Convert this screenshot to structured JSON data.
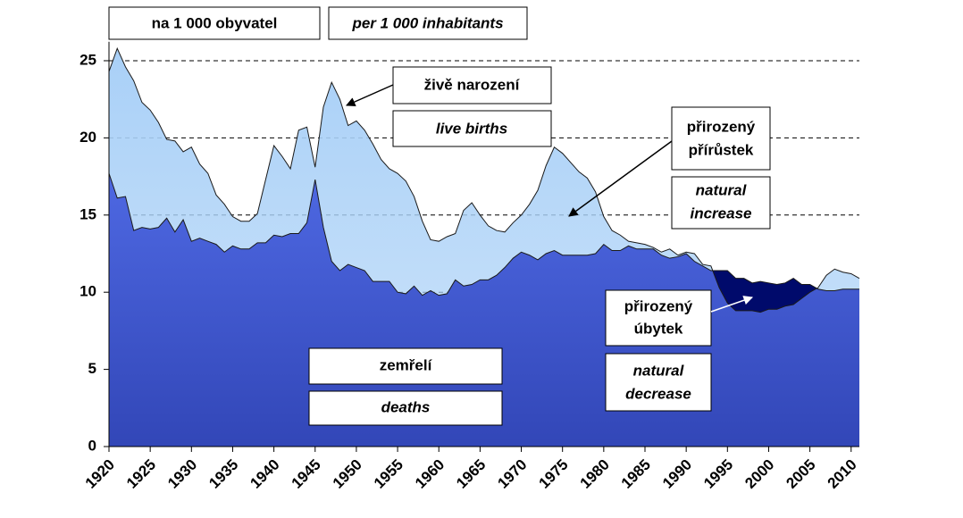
{
  "header": {
    "unit_cz": "na 1 000 obyvatel",
    "unit_en": "per 1 000 inhabitants"
  },
  "chart_data": {
    "type": "area",
    "x": [
      1920,
      1921,
      1922,
      1923,
      1924,
      1925,
      1926,
      1927,
      1928,
      1929,
      1930,
      1931,
      1932,
      1933,
      1934,
      1935,
      1936,
      1937,
      1938,
      1939,
      1940,
      1941,
      1942,
      1943,
      1944,
      1945,
      1946,
      1947,
      1948,
      1949,
      1950,
      1951,
      1952,
      1953,
      1954,
      1955,
      1956,
      1957,
      1958,
      1959,
      1960,
      1961,
      1962,
      1963,
      1964,
      1965,
      1966,
      1967,
      1968,
      1969,
      1970,
      1971,
      1972,
      1973,
      1974,
      1975,
      1976,
      1977,
      1978,
      1979,
      1980,
      1981,
      1982,
      1983,
      1984,
      1985,
      1986,
      1987,
      1988,
      1989,
      1990,
      1991,
      1992,
      1993,
      1994,
      1995,
      1996,
      1997,
      1998,
      1999,
      2000,
      2001,
      2002,
      2003,
      2004,
      2005,
      2006,
      2007,
      2008,
      2009,
      2010,
      2011
    ],
    "series": [
      {
        "name": "živě narození",
        "color": "#a9d0f7",
        "values": [
          24.3,
          25.8,
          24.6,
          23.7,
          22.3,
          21.8,
          21.0,
          19.9,
          19.8,
          19.1,
          19.4,
          18.3,
          17.7,
          16.3,
          15.7,
          14.9,
          14.6,
          14.6,
          15.1,
          17.3,
          19.5,
          18.8,
          18.0,
          20.5,
          20.7,
          18.1,
          22.0,
          23.6,
          22.5,
          20.8,
          21.1,
          20.5,
          19.6,
          18.6,
          18.0,
          17.7,
          17.2,
          16.2,
          14.6,
          13.4,
          13.3,
          13.6,
          13.8,
          15.3,
          15.8,
          15.0,
          14.3,
          14.0,
          13.9,
          14.5,
          15.0,
          15.7,
          16.6,
          18.2,
          19.4,
          19.0,
          18.4,
          17.8,
          17.4,
          16.5,
          14.9,
          14.0,
          13.7,
          13.3,
          13.2,
          13.1,
          12.9,
          12.6,
          12.8,
          12.4,
          12.6,
          12.5,
          11.8,
          11.7,
          10.3,
          9.3,
          8.8,
          8.8,
          8.8,
          8.7,
          8.9,
          8.9,
          9.1,
          9.2,
          9.6,
          10.0,
          10.3,
          11.1,
          11.5,
          11.3,
          11.2,
          10.9
        ]
      },
      {
        "name": "zemřelí",
        "color": "#5b78f6",
        "values": [
          17.7,
          16.1,
          16.2,
          14.0,
          14.2,
          14.1,
          14.2,
          14.8,
          13.9,
          14.7,
          13.3,
          13.5,
          13.3,
          13.1,
          12.6,
          13.0,
          12.8,
          12.8,
          13.2,
          13.2,
          13.7,
          13.6,
          13.8,
          13.8,
          14.5,
          17.3,
          14.2,
          12.0,
          11.4,
          11.8,
          11.6,
          11.4,
          10.7,
          10.7,
          10.7,
          10.0,
          9.9,
          10.4,
          9.8,
          10.1,
          9.8,
          9.9,
          10.8,
          10.4,
          10.5,
          10.8,
          10.8,
          11.1,
          11.6,
          12.2,
          12.6,
          12.4,
          12.1,
          12.5,
          12.7,
          12.4,
          12.4,
          12.4,
          12.4,
          12.5,
          13.1,
          12.7,
          12.7,
          13.0,
          12.8,
          12.8,
          12.8,
          12.4,
          12.2,
          12.3,
          12.5,
          12.0,
          11.7,
          11.4,
          11.4,
          11.4,
          10.9,
          10.9,
          10.6,
          10.7,
          10.6,
          10.5,
          10.6,
          10.9,
          10.5,
          10.5,
          10.2,
          10.1,
          10.1,
          10.2,
          10.2,
          10.2
        ]
      }
    ],
    "decrease_color": "#000a6b",
    "xlim": [
      1920,
      2011
    ],
    "xticks": [
      1920,
      1925,
      1930,
      1935,
      1940,
      1945,
      1950,
      1955,
      1960,
      1965,
      1970,
      1975,
      1980,
      1985,
      1990,
      1995,
      2000,
      2005,
      2010
    ],
    "ylim": [
      0,
      26
    ],
    "yticks": [
      0,
      5,
      10,
      15,
      20,
      25
    ],
    "grid": true,
    "annotations": {
      "live_births_en": "live births",
      "deaths_en": "deaths",
      "increase_cz": [
        "přirozený",
        "přírůstek"
      ],
      "increase_en": [
        "natural",
        "increase"
      ],
      "decrease_cz": [
        "přirozený",
        "úbytek"
      ],
      "decrease_en": [
        "natural",
        "decrease"
      ]
    }
  }
}
